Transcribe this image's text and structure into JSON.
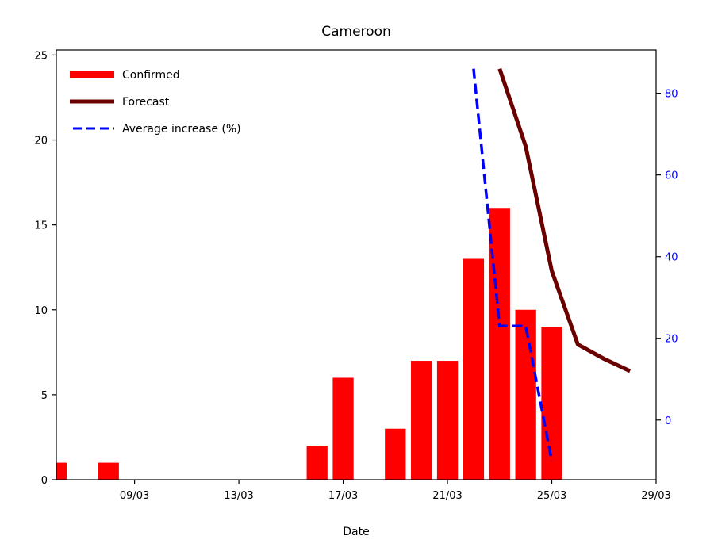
{
  "chart_data": {
    "type": "bar",
    "title": "Cameroon",
    "xlabel": "Date",
    "ylabel": "",
    "y2label": "",
    "ylim": [
      0,
      25.3
    ],
    "y2lim": [
      -14.6,
      90.6
    ],
    "xlim": [
      "2020-03-06",
      "2020-03-29"
    ],
    "x_ticks": [
      "09/03",
      "13/03",
      "17/03",
      "21/03",
      "25/03",
      "29/03"
    ],
    "y_ticks": [
      0,
      5,
      10,
      15,
      20,
      25
    ],
    "y2_ticks": [
      0,
      20,
      40,
      60,
      80
    ],
    "legend_position": "top-left",
    "grid": false,
    "colors": {
      "confirmed": "#ff0000",
      "forecast": "#6b0000",
      "average": "#0000ff",
      "right_axis": "#0000ff"
    },
    "series": [
      {
        "name": "Confirmed",
        "kind": "bar",
        "axis": "left",
        "x": [
          "2020-03-06",
          "2020-03-08",
          "2020-03-16",
          "2020-03-17",
          "2020-03-19",
          "2020-03-20",
          "2020-03-21",
          "2020-03-22",
          "2020-03-23",
          "2020-03-24",
          "2020-03-25"
        ],
        "values": [
          1,
          1,
          2,
          6,
          3,
          7,
          7,
          13,
          16,
          10,
          9
        ]
      },
      {
        "name": "Forecast",
        "kind": "line",
        "axis": "right",
        "x": [
          "2020-03-23",
          "2020-03-24",
          "2020-03-25",
          "2020-03-26",
          "2020-03-27",
          "2020-03-28"
        ],
        "values": [
          86,
          67,
          36.5,
          18.5,
          15,
          12
        ]
      },
      {
        "name": "Average increase (%)",
        "kind": "dashed-line",
        "axis": "right",
        "x": [
          "2020-03-22",
          "2020-03-23",
          "2020-03-24",
          "2020-03-25"
        ],
        "values": [
          86,
          23,
          23,
          -10
        ]
      }
    ]
  }
}
